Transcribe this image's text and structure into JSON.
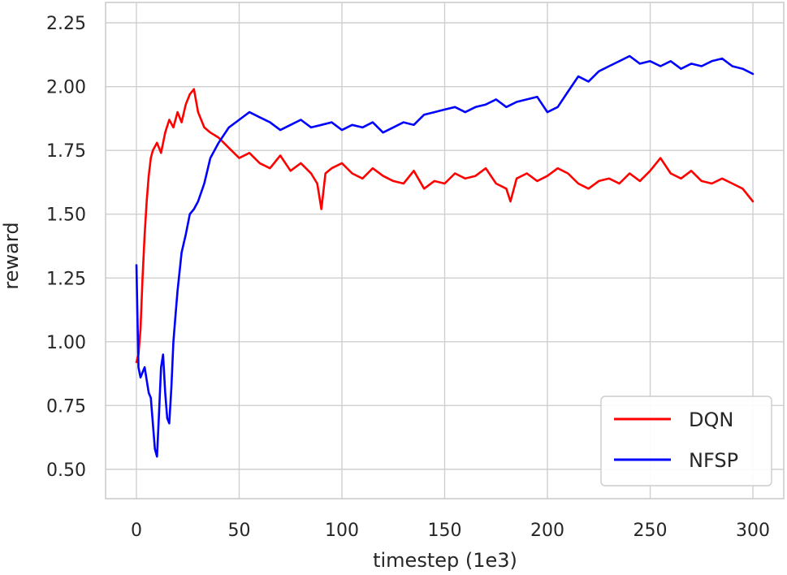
{
  "chart_data": {
    "type": "line",
    "title": "",
    "xlabel": "timestep (1e3)",
    "ylabel": "reward",
    "xlim": [
      -15,
      315
    ],
    "ylim": [
      0.385,
      2.33
    ],
    "xticks": [
      0,
      50,
      100,
      150,
      200,
      250,
      300
    ],
    "yticks": [
      0.5,
      0.75,
      1.0,
      1.25,
      1.5,
      1.75,
      2.0,
      2.25
    ],
    "grid": true,
    "legend_position": "bottom-right",
    "series": [
      {
        "name": "DQN",
        "color": "#ff0000",
        "x": [
          0,
          1,
          2,
          3,
          4,
          5,
          6,
          7,
          8,
          10,
          12,
          14,
          16,
          18,
          20,
          22,
          24,
          26,
          28,
          30,
          33,
          36,
          40,
          45,
          50,
          55,
          60,
          65,
          70,
          75,
          80,
          85,
          88,
          90,
          92,
          95,
          100,
          105,
          110,
          115,
          120,
          125,
          130,
          135,
          140,
          145,
          150,
          155,
          160,
          165,
          170,
          175,
          180,
          182,
          185,
          190,
          195,
          200,
          205,
          210,
          215,
          220,
          225,
          230,
          235,
          240,
          245,
          250,
          255,
          260,
          265,
          270,
          275,
          280,
          285,
          290,
          295,
          300
        ],
        "y": [
          0.92,
          0.95,
          1.05,
          1.25,
          1.42,
          1.55,
          1.65,
          1.72,
          1.75,
          1.78,
          1.74,
          1.82,
          1.87,
          1.84,
          1.9,
          1.86,
          1.93,
          1.97,
          1.99,
          1.9,
          1.84,
          1.82,
          1.8,
          1.76,
          1.72,
          1.74,
          1.7,
          1.68,
          1.73,
          1.67,
          1.7,
          1.66,
          1.62,
          1.52,
          1.66,
          1.68,
          1.7,
          1.66,
          1.64,
          1.68,
          1.65,
          1.63,
          1.62,
          1.67,
          1.6,
          1.63,
          1.62,
          1.66,
          1.64,
          1.65,
          1.68,
          1.62,
          1.6,
          1.55,
          1.64,
          1.66,
          1.63,
          1.65,
          1.68,
          1.66,
          1.62,
          1.6,
          1.63,
          1.64,
          1.62,
          1.66,
          1.63,
          1.67,
          1.72,
          1.66,
          1.64,
          1.67,
          1.63,
          1.62,
          1.64,
          1.62,
          1.6,
          1.55
        ]
      },
      {
        "name": "NFSP",
        "color": "#0000ff",
        "x": [
          0,
          1,
          2,
          3,
          4,
          5,
          6,
          7,
          8,
          9,
          10,
          11,
          12,
          13,
          14,
          15,
          16,
          17,
          18,
          19,
          20,
          22,
          24,
          26,
          28,
          30,
          33,
          36,
          40,
          45,
          50,
          55,
          60,
          65,
          70,
          75,
          80,
          85,
          90,
          95,
          100,
          105,
          110,
          115,
          120,
          125,
          130,
          135,
          140,
          145,
          150,
          155,
          160,
          165,
          170,
          175,
          180,
          185,
          190,
          195,
          200,
          205,
          210,
          215,
          220,
          225,
          230,
          235,
          240,
          245,
          250,
          255,
          260,
          265,
          270,
          275,
          280,
          285,
          290,
          295,
          300
        ],
        "y": [
          1.3,
          0.9,
          0.86,
          0.88,
          0.9,
          0.85,
          0.8,
          0.78,
          0.68,
          0.58,
          0.55,
          0.72,
          0.9,
          0.95,
          0.8,
          0.7,
          0.68,
          0.82,
          1.0,
          1.1,
          1.2,
          1.35,
          1.42,
          1.5,
          1.52,
          1.55,
          1.62,
          1.72,
          1.78,
          1.84,
          1.87,
          1.9,
          1.88,
          1.86,
          1.83,
          1.85,
          1.87,
          1.84,
          1.85,
          1.86,
          1.83,
          1.85,
          1.84,
          1.86,
          1.82,
          1.84,
          1.86,
          1.85,
          1.89,
          1.9,
          1.91,
          1.92,
          1.9,
          1.92,
          1.93,
          1.95,
          1.92,
          1.94,
          1.95,
          1.96,
          1.9,
          1.92,
          1.98,
          2.04,
          2.02,
          2.06,
          2.08,
          2.1,
          2.12,
          2.09,
          2.1,
          2.08,
          2.1,
          2.07,
          2.09,
          2.08,
          2.1,
          2.11,
          2.08,
          2.07,
          2.05
        ]
      }
    ]
  }
}
